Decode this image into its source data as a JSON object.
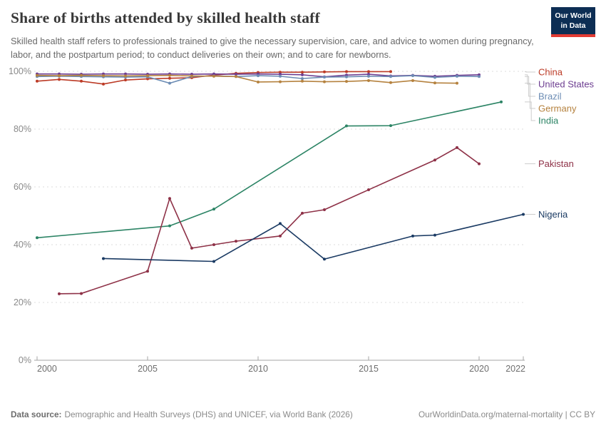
{
  "header": {
    "title": "Share of births attended by skilled health staff",
    "subtitle": "Skilled health staff refers to professionals trained to give the necessary supervision, care, and advice to women during pregnancy, labor, and the postpartum period; to conduct deliveries on their own; and to care for newborns.",
    "logo": {
      "line1": "Our World",
      "line2": "in Data",
      "bg_color": "#0d2e54",
      "stripe_color": "#e23b33"
    }
  },
  "footer": {
    "source_label": "Data source:",
    "source_text": "Demographic and Health Surveys (DHS) and UNICEF, via World Bank (2026)",
    "rights": "OurWorldinData.org/maternal-mortality | CC BY"
  },
  "chart_data": {
    "type": "line",
    "title": "Share of births attended by skilled health staff",
    "xlabel": "",
    "ylabel": "",
    "xlim": [
      2000,
      2022
    ],
    "ylim": [
      0,
      100
    ],
    "grid": true,
    "legend_position": "right",
    "x_ticks": [
      2000,
      2005,
      2010,
      2015,
      2020,
      2022
    ],
    "y_ticks": [
      0,
      20,
      40,
      60,
      80,
      100
    ],
    "y_tick_suffix": "%",
    "series": [
      {
        "name": "China",
        "color": "#bc3b26",
        "points": [
          [
            2000,
            96.6
          ],
          [
            2001,
            97.2
          ],
          [
            2002,
            96.6
          ],
          [
            2003,
            95.6
          ],
          [
            2004,
            97.0
          ],
          [
            2005,
            97.4
          ],
          [
            2006,
            97.6
          ],
          [
            2007,
            97.8
          ],
          [
            2008,
            98.7
          ],
          [
            2009,
            99.3
          ],
          [
            2010,
            99.6
          ],
          [
            2011,
            99.7
          ],
          [
            2012,
            99.7
          ],
          [
            2013,
            99.8
          ],
          [
            2014,
            99.9
          ],
          [
            2015,
            99.9
          ],
          [
            2016,
            99.9
          ]
        ]
      },
      {
        "name": "United States",
        "color": "#6d3e91",
        "points": [
          [
            2000,
            99.1
          ],
          [
            2001,
            99.1
          ],
          [
            2002,
            99.0
          ],
          [
            2003,
            99.1
          ],
          [
            2004,
            99.1
          ],
          [
            2005,
            99.0
          ],
          [
            2006,
            99.1
          ],
          [
            2007,
            99.0
          ],
          [
            2008,
            99.1
          ],
          [
            2009,
            99.0
          ],
          [
            2010,
            99.1
          ],
          [
            2011,
            99.0
          ],
          [
            2012,
            98.8
          ],
          [
            2013,
            98.1
          ],
          [
            2014,
            98.7
          ],
          [
            2015,
            99.0
          ],
          [
            2016,
            98.4
          ],
          [
            2017,
            98.6
          ],
          [
            2018,
            98.3
          ],
          [
            2019,
            98.6
          ],
          [
            2020,
            98.8
          ]
        ]
      },
      {
        "name": "Brazil",
        "color": "#6c8cb4",
        "points": [
          [
            2000,
            98.2
          ],
          [
            2001,
            98.3
          ],
          [
            2002,
            98.2
          ],
          [
            2003,
            98.1
          ],
          [
            2004,
            98.0
          ],
          [
            2005,
            98.1
          ],
          [
            2006,
            95.9
          ],
          [
            2007,
            98.2
          ],
          [
            2008,
            98.4
          ],
          [
            2009,
            98.2
          ],
          [
            2010,
            98.5
          ],
          [
            2011,
            98.3
          ],
          [
            2012,
            97.5
          ],
          [
            2013,
            98.0
          ],
          [
            2014,
            98.1
          ],
          [
            2015,
            98.3
          ],
          [
            2016,
            98.2
          ],
          [
            2017,
            98.5
          ],
          [
            2018,
            97.9
          ],
          [
            2019,
            98.3
          ],
          [
            2020,
            98.2
          ]
        ]
      },
      {
        "name": "Germany",
        "color": "#b5823f",
        "points": [
          [
            2000,
            98.6
          ],
          [
            2001,
            98.5
          ],
          [
            2002,
            98.6
          ],
          [
            2003,
            98.5
          ],
          [
            2004,
            98.4
          ],
          [
            2005,
            98.5
          ],
          [
            2006,
            98.6
          ],
          [
            2007,
            98.4
          ],
          [
            2008,
            98.3
          ],
          [
            2009,
            98.2
          ],
          [
            2010,
            96.3
          ],
          [
            2011,
            96.4
          ],
          [
            2012,
            96.6
          ],
          [
            2013,
            96.4
          ],
          [
            2014,
            96.5
          ],
          [
            2015,
            96.8
          ],
          [
            2016,
            96.1
          ],
          [
            2017,
            96.8
          ],
          [
            2018,
            96.0
          ],
          [
            2019,
            95.9
          ]
        ]
      },
      {
        "name": "India",
        "color": "#2c8465",
        "points": [
          [
            2000,
            42.4
          ],
          [
            2006,
            46.5
          ],
          [
            2008,
            52.3
          ],
          [
            2014,
            81.1
          ],
          [
            2016,
            81.2
          ],
          [
            2021,
            89.4
          ]
        ]
      },
      {
        "name": "Pakistan",
        "color": "#8e3147",
        "points": [
          [
            2001,
            23.0
          ],
          [
            2002,
            23.1
          ],
          [
            2005,
            30.8
          ],
          [
            2006,
            56.0
          ],
          [
            2007,
            38.8
          ],
          [
            2008,
            40.0
          ],
          [
            2009,
            41.2
          ],
          [
            2011,
            43.0
          ],
          [
            2012,
            50.9
          ],
          [
            2013,
            52.1
          ],
          [
            2015,
            59.0
          ],
          [
            2018,
            69.3
          ],
          [
            2019,
            73.6
          ],
          [
            2020,
            68.0
          ]
        ]
      },
      {
        "name": "Nigeria",
        "color": "#1a3a63",
        "points": [
          [
            2003,
            35.2
          ],
          [
            2008,
            34.2
          ],
          [
            2011,
            47.3
          ],
          [
            2013,
            35.0
          ],
          [
            2017,
            43.0
          ],
          [
            2018,
            43.3
          ],
          [
            2022,
            50.5
          ]
        ]
      }
    ]
  }
}
